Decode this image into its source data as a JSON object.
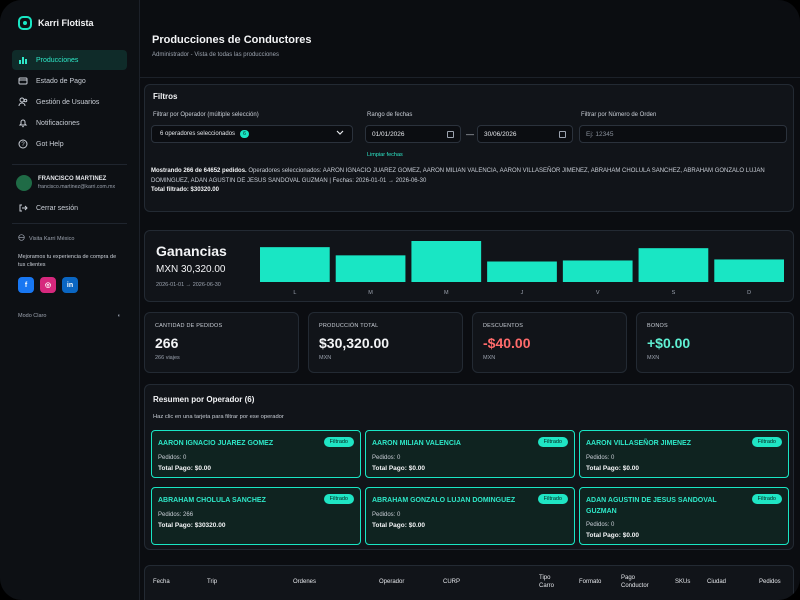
{
  "app": {
    "name": "Karri Flotista"
  },
  "sidebar": {
    "items": [
      {
        "label": "Producciones",
        "icon": "chart-icon",
        "active": true
      },
      {
        "label": "Estado de Pago",
        "icon": "card-icon",
        "active": false
      },
      {
        "label": "Gestión de Usuarios",
        "icon": "users-icon",
        "active": false
      },
      {
        "label": "Notificaciones",
        "icon": "bell-icon",
        "active": false
      },
      {
        "label": "Got Help",
        "icon": "help-icon",
        "active": false
      }
    ],
    "user": {
      "name": "FRANCISCO MARTINEZ",
      "email": "francisco.martinez@karri.com.mx"
    },
    "logout_label": "Cerrar sesión",
    "promo": {
      "brand": "Visita Karri México",
      "text": "Mejoramos tu experiencia de compra de tus clientes",
      "socials": [
        "f",
        "◎",
        "in"
      ]
    },
    "mode_label": "Modo Claro",
    "mode_icon": "◐"
  },
  "header": {
    "title": "Producciones de Conductores",
    "subtitle": "Administrador - Vista de todas las producciones"
  },
  "filters": {
    "title": "Filtros",
    "operator_label": "Filtrar por Operador (múltiple selección)",
    "operator_value": "6 operadores seleccionados",
    "operator_count": "6",
    "date_label": "Rango de fechas",
    "date_from": "01/01/2026",
    "date_to": "30/06/2026",
    "date_sep": "—",
    "order_label": "Filtrar por Número de Orden",
    "order_placeholder": "Ej: 12345",
    "clear_label": "Limpiar fechas",
    "summary_bold": "Mostrando 266 de 64652 pedidos.",
    "summary_text": " Operadores seleccionados: AARON IGNACIO JUAREZ GOMEZ, AARON MILIAN VALENCIA, AARON VILLASEÑOR JIMENEZ, ABRAHAM CHOLULA SANCHEZ, ABRAHAM GONZALO LUJAN DOMINGUEZ, ADAN AGUSTIN DE JESUS SANDOVAL GUZMAN | Fechas: 2026-01-01 → 2026-06-30",
    "summary_total": "Total filtrado: $30320.00"
  },
  "earnings": {
    "title": "Ganancias",
    "amount": "MXN 30,320.00",
    "range": "2026-01-01 → 2026-06-30"
  },
  "chart_data": {
    "type": "bar",
    "categories": [
      "L",
      "M",
      "M",
      "J",
      "V",
      "S",
      "D"
    ],
    "values": [
      34,
      26,
      40,
      20,
      21,
      33,
      22
    ],
    "color": "#19e6c4",
    "title": "",
    "xlabel": "",
    "ylabel": "",
    "ylim": [
      0,
      40
    ],
    "grid": false
  },
  "stats": [
    {
      "label": "CANTIDAD DE PEDIDOS",
      "value": "266",
      "sub": "266 viajes",
      "color": "#f3f4f6"
    },
    {
      "label": "PRODUCCIÓN TOTAL",
      "value": "$30,320.00",
      "sub": "MXN",
      "color": "#f3f4f6"
    },
    {
      "label": "DESCUENTOS",
      "value": "-$40.00",
      "sub": "MXN",
      "color": "#ff6b6b"
    },
    {
      "label": "BONOS",
      "value": "+$0.00",
      "sub": "MXN",
      "color": "#5ff0d3"
    }
  ],
  "resumen": {
    "title": "Resumen por Operador (6)",
    "subtitle": "Haz clic en una tarjeta para filtrar por ese operador",
    "operators": [
      {
        "name": "AARON IGNACIO JUAREZ GOMEZ",
        "badge": "Filtrado",
        "pedidos": "Pedidos: 0",
        "total": "Total Pago: $0.00"
      },
      {
        "name": "AARON MILIAN VALENCIA",
        "badge": "Filtrado",
        "pedidos": "Pedidos: 0",
        "total": "Total Pago: $0.00"
      },
      {
        "name": "AARON VILLASEÑOR JIMENEZ",
        "badge": "Filtrado",
        "pedidos": "Pedidos: 0",
        "total": "Total Pago: $0.00"
      },
      {
        "name": "ABRAHAM CHOLULA SANCHEZ",
        "badge": "Filtrado",
        "pedidos": "Pedidos: 266",
        "total": "Total Pago: $30320.00"
      },
      {
        "name": "ABRAHAM GONZALO LUJAN DOMINGUEZ",
        "badge": "Filtrado",
        "pedidos": "Pedidos: 0",
        "total": "Total Pago: $0.00"
      },
      {
        "name": "ADAN AGUSTIN DE JESUS SANDOVAL GUZMAN",
        "badge": "Filtrado",
        "pedidos": "Pedidos: 0",
        "total": "Total Pago: $0.00"
      }
    ]
  },
  "table": {
    "columns": [
      "Fecha",
      "Trip",
      "Ordenes",
      "Operador",
      "CURP",
      "Tipo Carro",
      "Formato",
      "Pago Conductor",
      "SKUs",
      "Ciudad",
      "Pedidos"
    ]
  }
}
